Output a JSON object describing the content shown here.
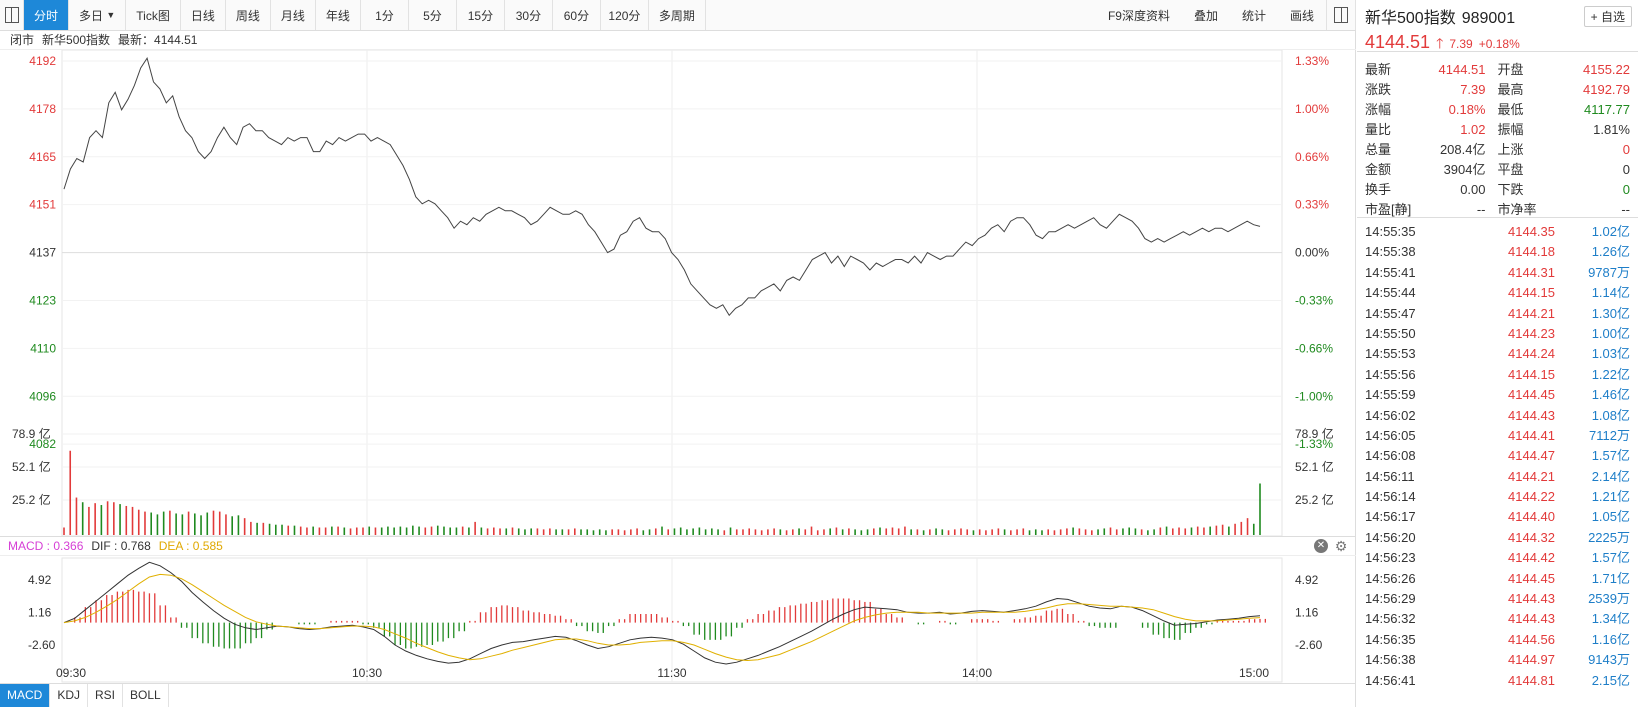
{
  "toolbar": {
    "tabs": [
      "分时",
      "多日",
      "Tick图",
      "日线",
      "周线",
      "月线",
      "年线",
      "1分",
      "5分",
      "15分",
      "30分",
      "60分",
      "120分",
      "多周期"
    ],
    "multi_day_arrow": "▼",
    "right_buttons": [
      "F9深度资料",
      "叠加",
      "统计",
      "画线"
    ]
  },
  "infobar": {
    "status": "闭市",
    "name": "新华500指数",
    "latest": "最新：4144.51"
  },
  "price_axis": {
    "left": [
      "4192",
      "4178",
      "4165",
      "4151",
      "4137",
      "4123",
      "4110",
      "4096",
      "4082"
    ],
    "right": [
      "1.33%",
      "1.00%",
      "0.66%",
      "0.33%",
      "0.00%",
      "-0.33%",
      "-0.66%",
      "-1.00%",
      "-1.33%"
    ]
  },
  "volume_axis": [
    "78.9 亿",
    "52.1 亿",
    "25.2 亿"
  ],
  "macd_axis": [
    "4.92",
    "1.16",
    "-2.60"
  ],
  "time_axis": [
    "09:30",
    "10:30",
    "11:30",
    "14:00",
    "15:00"
  ],
  "macd_bar": {
    "macd": "MACD : 0.366",
    "dif": "DIF : 0.768",
    "dea": "DEA : 0.585"
  },
  "bottom_tabs": [
    "MACD",
    "KDJ",
    "RSI",
    "BOLL"
  ],
  "quote": {
    "name": "新华500指数",
    "code": "989001",
    "watch": "+ 自选",
    "price": "4144.51",
    "change": "7.39",
    "change_pct": "+0.18%",
    "stats": [
      [
        {
          "l": "最新",
          "v": "4144.51",
          "c": "red"
        },
        {
          "l": "开盘",
          "v": "4155.22",
          "c": "red"
        }
      ],
      [
        {
          "l": "涨跌",
          "v": "7.39",
          "c": "red"
        },
        {
          "l": "最高",
          "v": "4192.79",
          "c": "red"
        }
      ],
      [
        {
          "l": "涨幅",
          "v": "0.18%",
          "c": "red"
        },
        {
          "l": "最低",
          "v": "4117.77",
          "c": "green"
        }
      ],
      [
        {
          "l": "量比",
          "v": "1.02",
          "c": "red"
        },
        {
          "l": "振幅",
          "v": "1.81%",
          "c": "dark"
        }
      ],
      [
        {
          "l": "总量",
          "v": "208.4亿",
          "c": "dark"
        },
        {
          "l": "上涨",
          "v": "0",
          "c": "red"
        }
      ],
      [
        {
          "l": "金额",
          "v": "3904亿",
          "c": "dark"
        },
        {
          "l": "平盘",
          "v": "0",
          "c": "dark"
        }
      ],
      [
        {
          "l": "换手",
          "v": "0.00",
          "c": "dark"
        },
        {
          "l": "下跌",
          "v": "0",
          "c": "green"
        }
      ],
      [
        {
          "l": "市盈[静]",
          "v": "--",
          "c": "dark"
        },
        {
          "l": "市净率",
          "v": "--",
          "c": "dark"
        }
      ]
    ],
    "ticks": [
      [
        "14:55:35",
        "4144.35",
        "1.02亿"
      ],
      [
        "14:55:38",
        "4144.18",
        "1.26亿"
      ],
      [
        "14:55:41",
        "4144.31",
        "9787万"
      ],
      [
        "14:55:44",
        "4144.15",
        "1.14亿"
      ],
      [
        "14:55:47",
        "4144.21",
        "1.30亿"
      ],
      [
        "14:55:50",
        "4144.23",
        "1.00亿"
      ],
      [
        "14:55:53",
        "4144.24",
        "1.03亿"
      ],
      [
        "14:55:56",
        "4144.15",
        "1.22亿"
      ],
      [
        "14:55:59",
        "4144.45",
        "1.46亿"
      ],
      [
        "14:56:02",
        "4144.43",
        "1.08亿"
      ],
      [
        "14:56:05",
        "4144.41",
        "7112万"
      ],
      [
        "14:56:08",
        "4144.47",
        "1.57亿"
      ],
      [
        "14:56:11",
        "4144.21",
        "2.14亿"
      ],
      [
        "14:56:14",
        "4144.22",
        "1.21亿"
      ],
      [
        "14:56:17",
        "4144.40",
        "1.05亿"
      ],
      [
        "14:56:20",
        "4144.32",
        "2225万"
      ],
      [
        "14:56:23",
        "4144.42",
        "1.57亿"
      ],
      [
        "14:56:26",
        "4144.45",
        "1.71亿"
      ],
      [
        "14:56:29",
        "4144.43",
        "2539万"
      ],
      [
        "14:56:32",
        "4144.43",
        "1.34亿"
      ],
      [
        "14:56:35",
        "4144.56",
        "1.16亿"
      ],
      [
        "14:56:38",
        "4144.97",
        "9143万"
      ],
      [
        "14:56:41",
        "4144.81",
        "2.15亿"
      ]
    ]
  },
  "chart_data": {
    "type": "line",
    "prev_close": 4137.12,
    "price_ylim": [
      4075.37,
      4198.87
    ],
    "price_series": [
      4155.22,
      4161,
      4164,
      4163,
      4170,
      4172,
      4170,
      4180,
      4183,
      4178,
      4181,
      4185,
      4190,
      4192.79,
      4186,
      4184,
      4180,
      4182,
      4176,
      4172,
      4170,
      4166,
      4164,
      4166,
      4170,
      4173,
      4170,
      4168,
      4173,
      4174,
      4172,
      4172,
      4170,
      4169,
      4168,
      4170,
      4169,
      4170,
      4170,
      4166,
      4166,
      4169,
      4168,
      4170,
      4169,
      4170,
      4171,
      4171,
      4169,
      4170,
      4169,
      4168,
      4165,
      4162,
      4158,
      4153,
      4151,
      4152,
      4151,
      4149,
      4147,
      4144,
      4146,
      4145,
      4147,
      4146,
      4148,
      4149,
      4150,
      4149,
      4149,
      4148,
      4147,
      4145,
      4146,
      4148,
      4150,
      4149,
      4148,
      4148,
      4149,
      4148,
      4145,
      4143,
      4140,
      4137,
      4138,
      4142,
      4143,
      4146,
      4147,
      4144,
      4143,
      4143,
      4141,
      4137,
      4135,
      4132,
      4128,
      4126,
      4124,
      4122,
      4121,
      4122,
      4119,
      4121,
      4122,
      4124,
      4124,
      4126,
      4127,
      4128,
      4126,
      4129,
      4130,
      4129,
      4132,
      4135,
      4136,
      4137,
      4134,
      4136,
      4133,
      4136,
      4135,
      4134,
      4132,
      4134,
      4133,
      4134,
      4135,
      4135,
      4134,
      4136,
      4134,
      4137,
      4136,
      4135,
      4136,
      4136,
      4138,
      4140,
      4139,
      4141,
      4142,
      4144,
      4145,
      4143,
      4146,
      4147,
      4147,
      4145,
      4142,
      4141,
      4143,
      4143,
      4144,
      4145,
      4144,
      4145,
      4146,
      4147,
      4145,
      4144,
      4146,
      4148,
      4147,
      4146,
      4144,
      4141,
      4140,
      4141,
      4140,
      4141,
      4142,
      4143,
      4142,
      4143,
      4144,
      4143,
      4144,
      4144,
      4143,
      4144,
      4145,
      4146,
      4145,
      4144.51
    ],
    "volume_ylim": [
      0,
      110
    ],
    "volume_series": [
      8,
      90,
      40,
      35,
      30,
      34,
      32,
      36,
      35,
      33,
      31,
      30,
      27,
      25,
      24,
      22,
      25,
      26,
      23,
      22,
      25,
      23,
      21,
      24,
      26,
      25,
      22,
      20,
      21,
      18,
      14,
      13,
      13,
      12,
      11,
      11,
      10,
      10,
      9,
      8,
      9,
      8,
      8,
      9,
      9,
      8,
      7,
      8,
      8,
      9,
      8,
      8,
      9,
      8,
      9,
      8,
      10,
      9,
      8,
      9,
      10,
      9,
      8,
      8,
      9,
      8,
      14,
      8,
      7,
      8,
      7,
      7,
      8,
      7,
      6,
      7,
      7,
      6,
      7,
      6,
      6,
      6,
      7,
      6,
      6,
      5,
      6,
      5,
      6,
      6,
      5,
      6,
      7,
      5,
      6,
      7,
      9,
      6,
      7,
      8,
      6,
      7,
      8,
      6,
      7,
      6,
      5,
      8,
      6,
      6,
      7,
      6,
      5,
      6,
      7,
      6,
      5,
      6,
      7,
      6,
      9,
      5,
      6,
      7,
      8,
      6,
      7,
      6,
      5,
      6,
      7,
      8,
      7,
      8,
      7,
      9,
      6,
      6,
      5,
      6,
      7,
      6,
      5,
      6,
      7,
      6,
      5,
      6,
      5,
      6,
      7,
      6,
      5,
      6,
      7,
      5,
      6,
      5,
      6,
      5,
      6,
      7,
      8,
      7,
      6,
      5,
      6,
      7,
      8,
      6,
      7,
      8,
      7,
      6,
      5,
      6,
      8,
      9,
      7,
      8,
      7,
      8,
      9,
      8,
      9,
      10,
      11,
      9,
      12,
      14,
      18,
      12,
      55
    ],
    "macd_ylim": [
      -5.5,
      7.5
    ],
    "dif_series": [
      0,
      0.5,
      1.5,
      2.5,
      3.5,
      4.5,
      5.5,
      6.3,
      7.0,
      6.6,
      5.8,
      4.8,
      3.5,
      2.4,
      1.4,
      0.5,
      -0.2,
      -0.6,
      -0.8,
      -0.6,
      -0.4,
      -0.5,
      -0.7,
      -0.8,
      -0.7,
      -0.5,
      -0.4,
      -0.3,
      -0.5,
      -0.8,
      -1.6,
      -2.6,
      -3.3,
      -3.8,
      -4.2,
      -4.5,
      -4.7,
      -4.6,
      -4.2,
      -3.6,
      -3.0,
      -2.6,
      -2.3,
      -2.2,
      -2.0,
      -1.8,
      -1.6,
      -1.7,
      -2.1,
      -2.6,
      -3.0,
      -2.8,
      -2.4,
      -2.0,
      -1.8,
      -1.7,
      -1.8,
      -2.0,
      -2.5,
      -3.3,
      -4.1,
      -4.6,
      -4.8,
      -4.6,
      -4.2,
      -3.8,
      -3.3,
      -2.8,
      -2.2,
      -1.6,
      -1.0,
      -0.3,
      0.4,
      1.0,
      1.5,
      1.8,
      1.7,
      1.6,
      1.5,
      1.2,
      1.1,
      1.1,
      1.2,
      1.0,
      1.1,
      1.3,
      1.4,
      1.3,
      1.2,
      1.4,
      1.6,
      1.9,
      2.4,
      2.8,
      2.7,
      2.3,
      1.9,
      1.7,
      1.6,
      1.9,
      1.8,
      1.4,
      0.8,
      0.2,
      -0.3,
      -0.2,
      -0.1,
      0.1,
      0.3,
      0.4,
      0.5,
      0.7,
      0.8
    ],
    "dea_series": [
      0,
      0.2,
      0.6,
      1.2,
      1.9,
      2.7,
      3.6,
      4.5,
      5.3,
      5.6,
      5.5,
      5.1,
      4.4,
      3.6,
      2.8,
      2.0,
      1.3,
      0.6,
      0.1,
      -0.2,
      -0.4,
      -0.5,
      -0.6,
      -0.7,
      -0.7,
      -0.6,
      -0.5,
      -0.4,
      -0.4,
      -0.5,
      -0.8,
      -1.3,
      -1.8,
      -2.4,
      -2.9,
      -3.4,
      -3.8,
      -4.1,
      -4.3,
      -4.2,
      -3.9,
      -3.6,
      -3.2,
      -2.9,
      -2.6,
      -2.3,
      -2.0,
      -1.9,
      -1.9,
      -2.1,
      -2.4,
      -2.6,
      -2.6,
      -2.5,
      -2.3,
      -2.2,
      -2.1,
      -2.1,
      -2.3,
      -2.6,
      -3.1,
      -3.6,
      -4.0,
      -4.3,
      -4.4,
      -4.3,
      -4.0,
      -3.7,
      -3.2,
      -2.7,
      -2.2,
      -1.6,
      -1.0,
      -0.4,
      0.2,
      0.6,
      0.9,
      1.1,
      1.2,
      1.2,
      1.2,
      1.1,
      1.1,
      1.1,
      1.1,
      1.1,
      1.2,
      1.2,
      1.2,
      1.2,
      1.3,
      1.5,
      1.7,
      2.0,
      2.2,
      2.2,
      2.1,
      2.0,
      1.9,
      1.9,
      1.8,
      1.7,
      1.5,
      1.1,
      0.7,
      0.4,
      0.2,
      0.2,
      0.2,
      0.3,
      0.4,
      0.5,
      0.585
    ]
  }
}
